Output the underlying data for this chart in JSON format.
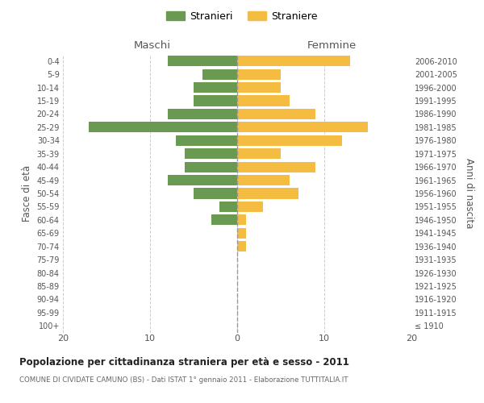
{
  "age_groups": [
    "100+",
    "95-99",
    "90-94",
    "85-89",
    "80-84",
    "75-79",
    "70-74",
    "65-69",
    "60-64",
    "55-59",
    "50-54",
    "45-49",
    "40-44",
    "35-39",
    "30-34",
    "25-29",
    "20-24",
    "15-19",
    "10-14",
    "5-9",
    "0-4"
  ],
  "birth_years": [
    "≤ 1910",
    "1911-1915",
    "1916-1920",
    "1921-1925",
    "1926-1930",
    "1931-1935",
    "1936-1940",
    "1941-1945",
    "1946-1950",
    "1951-1955",
    "1956-1960",
    "1961-1965",
    "1966-1970",
    "1971-1975",
    "1976-1980",
    "1981-1985",
    "1986-1990",
    "1991-1995",
    "1996-2000",
    "2001-2005",
    "2006-2010"
  ],
  "maschi": [
    0,
    0,
    0,
    0,
    0,
    0,
    0,
    0,
    3,
    2,
    5,
    8,
    6,
    6,
    7,
    17,
    8,
    5,
    5,
    4,
    8
  ],
  "femmine": [
    0,
    0,
    0,
    0,
    0,
    0,
    1,
    1,
    1,
    3,
    7,
    6,
    9,
    5,
    12,
    15,
    9,
    6,
    5,
    5,
    13
  ],
  "color_maschi": "#6a9a52",
  "color_femmine": "#f5bc42",
  "title": "Popolazione per cittadinanza straniera per età e sesso - 2011",
  "subtitle": "COMUNE DI CIVIDATE CAMUNO (BS) - Dati ISTAT 1° gennaio 2011 - Elaborazione TUTTITALIA.IT",
  "label_maschi": "Stranieri",
  "label_femmine": "Straniere",
  "xlabel_left": "Maschi",
  "xlabel_right": "Femmine",
  "ylabel_left": "Fasce di età",
  "ylabel_right": "Anni di nascita",
  "xlim": 20,
  "background_color": "#ffffff",
  "grid_color": "#cccccc"
}
